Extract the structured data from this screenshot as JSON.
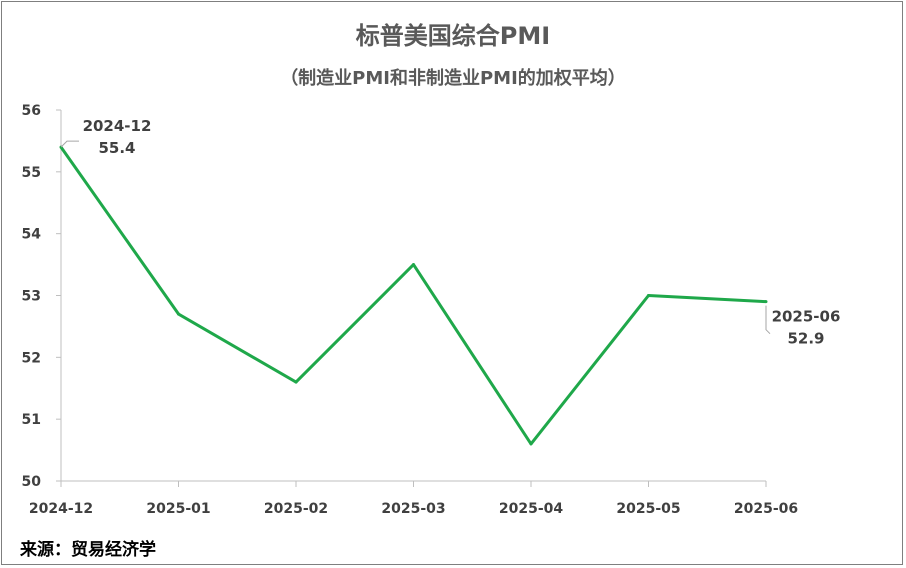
{
  "title": "标普美国综合PMI",
  "subtitle": "（制造业PMI和非制造业PMI的加权平均）",
  "source": "来源：贸易经济学",
  "chart_data": {
    "type": "line",
    "categories": [
      "2024-12",
      "2025-01",
      "2025-02",
      "2025-03",
      "2025-04",
      "2025-05",
      "2025-06"
    ],
    "values": [
      55.4,
      52.7,
      51.6,
      53.5,
      50.6,
      53.0,
      52.9
    ],
    "ylim": [
      50,
      56
    ],
    "yticks": [
      "50",
      "51",
      "52",
      "53",
      "54",
      "55",
      "56"
    ],
    "grid": false,
    "line_color": "#1fa84a",
    "annotations": [
      {
        "category": "2024-12",
        "label": "2024-12",
        "value_text": "55.4"
      },
      {
        "category": "2025-06",
        "label": "2025-06",
        "value_text": "52.9"
      }
    ]
  }
}
